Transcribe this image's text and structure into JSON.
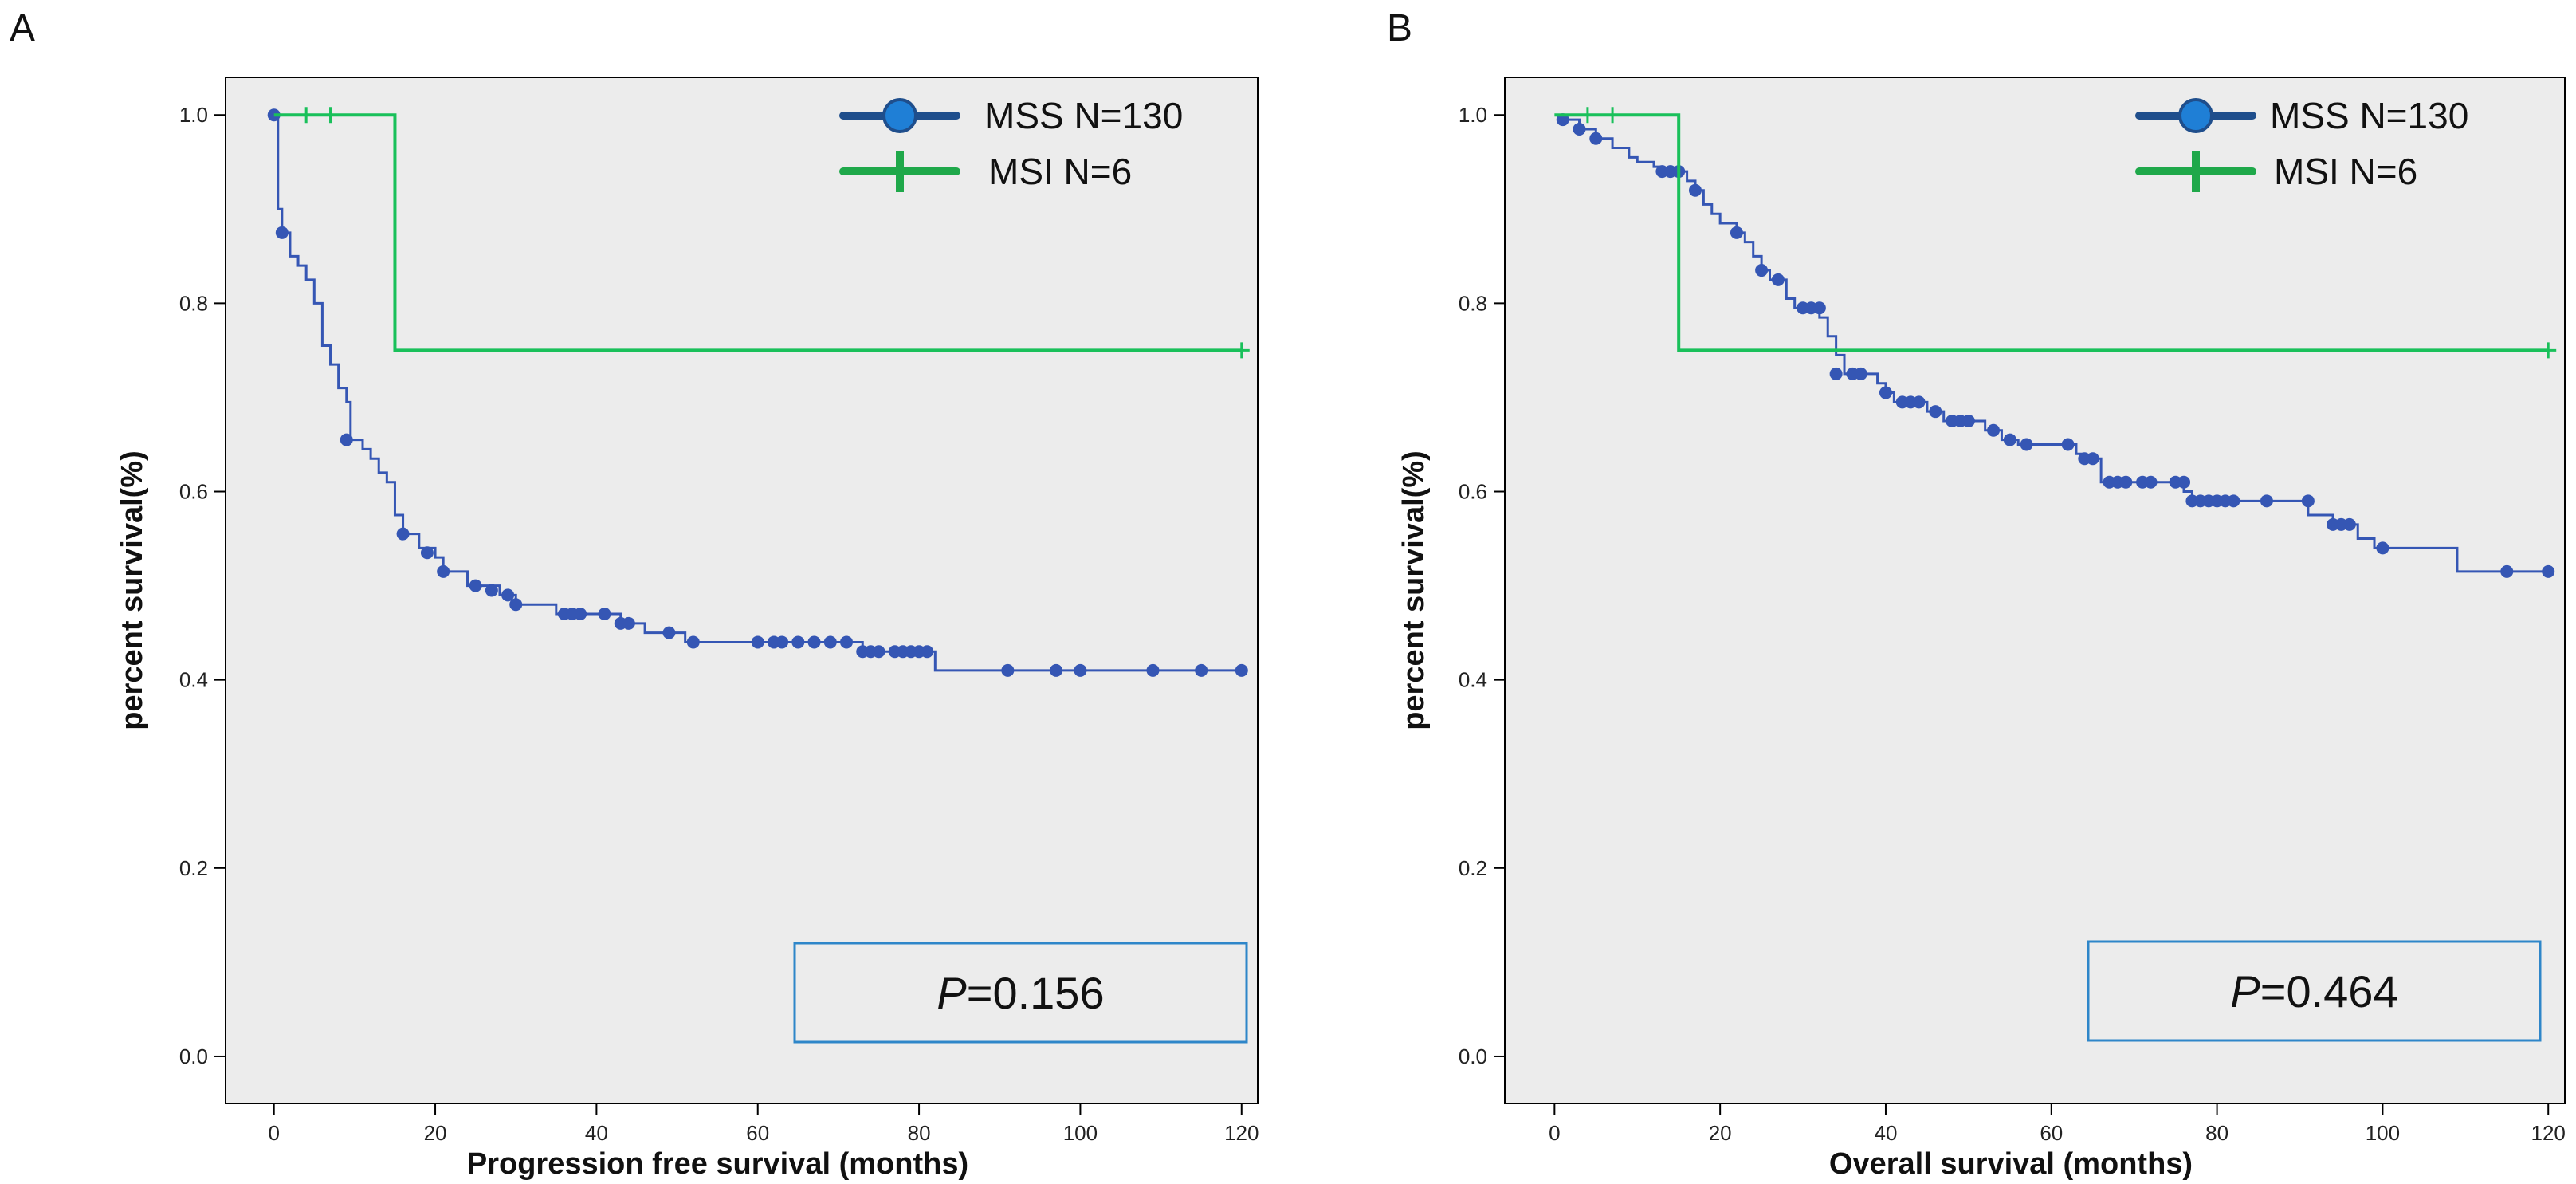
{
  "colors": {
    "mss": "#3556b4",
    "mss_legend": "#1f4e8c",
    "mss_legend_marker": "#1f7fd6",
    "msi": "#19c05a",
    "msi_legend": "#1fa84a",
    "plot_bg": "#ececec",
    "pbox_border": "#2e86c9"
  },
  "chart_data": [
    {
      "panel_label": "A",
      "type": "line",
      "subtype": "kaplan-meier step plot with censor marks",
      "xlabel": "Progression free survival (months)",
      "ylabel": "percent survival(%)",
      "xlim": [
        -6,
        122
      ],
      "ylim": [
        -0.05,
        1.04
      ],
      "xticks": [
        0,
        20,
        40,
        60,
        80,
        100,
        120
      ],
      "yticks": [
        0.0,
        0.2,
        0.4,
        0.6,
        0.8,
        1.0
      ],
      "xtick_labels": [
        "0",
        "20",
        "40",
        "60",
        "80",
        "100",
        "120"
      ],
      "ytick_labels": [
        "0.0",
        "0.2",
        "0.4",
        "0.6",
        "0.8",
        "1.0"
      ],
      "grid": false,
      "legend_position": "top-right",
      "p_value": {
        "prefix": "P",
        "text": "=0.156"
      },
      "series": [
        {
          "name": "MSS",
          "legend_label": "MSS  N=130",
          "marker": "circle",
          "steps": [
            [
              0,
              1.0
            ],
            [
              0.5,
              0.9
            ],
            [
              1,
              0.875
            ],
            [
              2,
              0.85
            ],
            [
              3,
              0.84
            ],
            [
              4,
              0.825
            ],
            [
              5,
              0.8
            ],
            [
              6,
              0.755
            ],
            [
              7,
              0.735
            ],
            [
              8,
              0.71
            ],
            [
              9,
              0.695
            ],
            [
              9.5,
              0.655
            ],
            [
              11,
              0.645
            ],
            [
              12,
              0.635
            ],
            [
              13,
              0.62
            ],
            [
              14,
              0.61
            ],
            [
              15,
              0.575
            ],
            [
              16,
              0.555
            ],
            [
              18,
              0.54
            ],
            [
              20,
              0.53
            ],
            [
              21,
              0.515
            ],
            [
              24,
              0.5
            ],
            [
              28,
              0.49
            ],
            [
              30,
              0.48
            ],
            [
              35,
              0.47
            ],
            [
              43,
              0.46
            ],
            [
              46,
              0.45
            ],
            [
              51,
              0.44
            ],
            [
              73,
              0.43
            ],
            [
              82,
              0.41
            ],
            [
              120,
              0.41
            ]
          ],
          "censored": [
            [
              0,
              1.0
            ],
            [
              1,
              0.875
            ],
            [
              9,
              0.655
            ],
            [
              16,
              0.555
            ],
            [
              19,
              0.535
            ],
            [
              21,
              0.515
            ],
            [
              25,
              0.5
            ],
            [
              27,
              0.495
            ],
            [
              29,
              0.49
            ],
            [
              30,
              0.48
            ],
            [
              36,
              0.47
            ],
            [
              37,
              0.47
            ],
            [
              38,
              0.47
            ],
            [
              41,
              0.47
            ],
            [
              43,
              0.46
            ],
            [
              44,
              0.46
            ],
            [
              49,
              0.45
            ],
            [
              52,
              0.44
            ],
            [
              60,
              0.44
            ],
            [
              62,
              0.44
            ],
            [
              63,
              0.44
            ],
            [
              65,
              0.44
            ],
            [
              67,
              0.44
            ],
            [
              69,
              0.44
            ],
            [
              71,
              0.44
            ],
            [
              73,
              0.43
            ],
            [
              74,
              0.43
            ],
            [
              75,
              0.43
            ],
            [
              77,
              0.43
            ],
            [
              78,
              0.43
            ],
            [
              79,
              0.43
            ],
            [
              80,
              0.43
            ],
            [
              81,
              0.43
            ],
            [
              91,
              0.41
            ],
            [
              97,
              0.41
            ],
            [
              100,
              0.41
            ],
            [
              109,
              0.41
            ],
            [
              115,
              0.41
            ],
            [
              120,
              0.41
            ]
          ]
        },
        {
          "name": "MSI",
          "legend_label": "MSI    N=6",
          "marker": "plus",
          "steps": [
            [
              0,
              1.0
            ],
            [
              15,
              0.75
            ],
            [
              120,
              0.75
            ]
          ],
          "censored": [
            [
              4,
              1.0
            ],
            [
              7,
              1.0
            ],
            [
              120,
              0.75
            ]
          ]
        }
      ]
    },
    {
      "panel_label": "B",
      "type": "line",
      "subtype": "kaplan-meier step plot with censor marks",
      "xlabel": "Overall survival (months)",
      "ylabel": "percent survival(%)",
      "xlim": [
        -6,
        122
      ],
      "ylim": [
        -0.05,
        1.04
      ],
      "xticks": [
        0,
        20,
        40,
        60,
        80,
        100,
        120
      ],
      "yticks": [
        0.0,
        0.2,
        0.4,
        0.6,
        0.8,
        1.0
      ],
      "xtick_labels": [
        "0",
        "20",
        "40",
        "60",
        "80",
        "100",
        "120"
      ],
      "ytick_labels": [
        "0.0",
        "0.2",
        "0.4",
        "0.6",
        "0.8",
        "1.0"
      ],
      "grid": false,
      "legend_position": "top-right",
      "p_value": {
        "prefix": "P",
        "text": "=0.464"
      },
      "series": [
        {
          "name": "MSS",
          "legend_label": "MSS  N=130",
          "marker": "circle",
          "steps": [
            [
              1,
              0.995
            ],
            [
              3,
              0.985
            ],
            [
              5,
              0.975
            ],
            [
              7,
              0.965
            ],
            [
              9,
              0.955
            ],
            [
              10,
              0.95
            ],
            [
              12,
              0.945
            ],
            [
              13,
              0.94
            ],
            [
              16,
              0.93
            ],
            [
              17,
              0.92
            ],
            [
              18,
              0.905
            ],
            [
              19,
              0.895
            ],
            [
              20,
              0.885
            ],
            [
              22,
              0.875
            ],
            [
              23,
              0.865
            ],
            [
              24,
              0.85
            ],
            [
              25,
              0.835
            ],
            [
              26,
              0.825
            ],
            [
              28,
              0.805
            ],
            [
              29,
              0.795
            ],
            [
              32,
              0.785
            ],
            [
              33,
              0.765
            ],
            [
              34,
              0.745
            ],
            [
              35,
              0.725
            ],
            [
              39,
              0.715
            ],
            [
              40,
              0.705
            ],
            [
              41,
              0.695
            ],
            [
              45,
              0.685
            ],
            [
              47,
              0.675
            ],
            [
              52,
              0.665
            ],
            [
              54,
              0.655
            ],
            [
              56,
              0.65
            ],
            [
              63,
              0.64
            ],
            [
              64,
              0.635
            ],
            [
              66,
              0.61
            ],
            [
              76,
              0.6
            ],
            [
              77,
              0.59
            ],
            [
              91,
              0.575
            ],
            [
              94,
              0.565
            ],
            [
              97,
              0.55
            ],
            [
              99,
              0.54
            ],
            [
              109,
              0.515
            ],
            [
              120,
              0.515
            ]
          ],
          "censored": [
            [
              1,
              0.995
            ],
            [
              3,
              0.985
            ],
            [
              5,
              0.975
            ],
            [
              13,
              0.94
            ],
            [
              14,
              0.94
            ],
            [
              15,
              0.94
            ],
            [
              17,
              0.92
            ],
            [
              22,
              0.875
            ],
            [
              25,
              0.835
            ],
            [
              27,
              0.825
            ],
            [
              30,
              0.795
            ],
            [
              31,
              0.795
            ],
            [
              32,
              0.795
            ],
            [
              34,
              0.725
            ],
            [
              36,
              0.725
            ],
            [
              37,
              0.725
            ],
            [
              40,
              0.705
            ],
            [
              42,
              0.695
            ],
            [
              43,
              0.695
            ],
            [
              44,
              0.695
            ],
            [
              46,
              0.685
            ],
            [
              48,
              0.675
            ],
            [
              49,
              0.675
            ],
            [
              50,
              0.675
            ],
            [
              53,
              0.665
            ],
            [
              55,
              0.655
            ],
            [
              57,
              0.65
            ],
            [
              62,
              0.65
            ],
            [
              64,
              0.635
            ],
            [
              65,
              0.635
            ],
            [
              67,
              0.61
            ],
            [
              68,
              0.61
            ],
            [
              69,
              0.61
            ],
            [
              71,
              0.61
            ],
            [
              72,
              0.61
            ],
            [
              75,
              0.61
            ],
            [
              76,
              0.61
            ],
            [
              77,
              0.59
            ],
            [
              78,
              0.59
            ],
            [
              79,
              0.59
            ],
            [
              80,
              0.59
            ],
            [
              81,
              0.59
            ],
            [
              82,
              0.59
            ],
            [
              86,
              0.59
            ],
            [
              91,
              0.59
            ],
            [
              94,
              0.565
            ],
            [
              95,
              0.565
            ],
            [
              96,
              0.565
            ],
            [
              100,
              0.54
            ],
            [
              115,
              0.515
            ],
            [
              120,
              0.515
            ]
          ]
        },
        {
          "name": "MSI",
          "legend_label": "MSI    N=6",
          "marker": "plus",
          "steps": [
            [
              0,
              1.0
            ],
            [
              15,
              0.75
            ],
            [
              120,
              0.75
            ]
          ],
          "censored": [
            [
              4,
              1.0
            ],
            [
              7,
              1.0
            ],
            [
              120,
              0.75
            ]
          ]
        }
      ]
    }
  ]
}
